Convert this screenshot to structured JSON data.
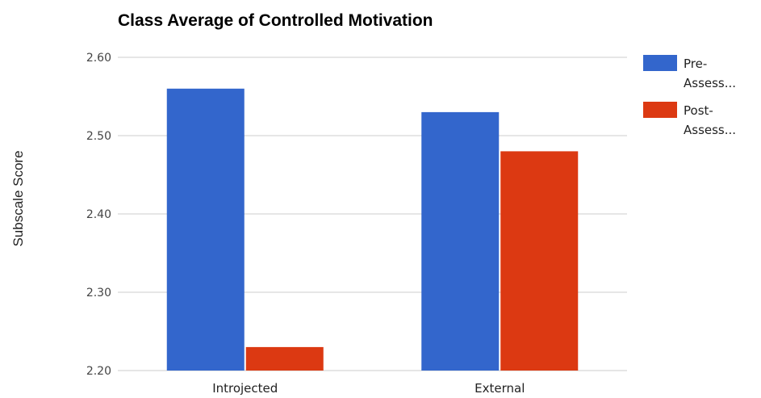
{
  "chart_data": {
    "type": "bar",
    "title": "Class Average of Controlled Motivation",
    "xlabel": "",
    "ylabel": "Subscale Score",
    "ylim": [
      2.2,
      2.6
    ],
    "yticks": [
      "2.20",
      "2.30",
      "2.40",
      "2.50",
      "2.60"
    ],
    "categories": [
      "Introjected",
      "External"
    ],
    "series": [
      {
        "name": "Pre-Assessment",
        "legend_lines": [
          "Pre-",
          "Assess..."
        ],
        "color": "#3366cc",
        "values": [
          2.56,
          2.53
        ]
      },
      {
        "name": "Post-Assessment",
        "legend_lines": [
          "Post-",
          "Assess..."
        ],
        "color": "#dc3912",
        "values": [
          2.23,
          2.48
        ]
      }
    ],
    "grid": true,
    "legend_position": "right"
  }
}
